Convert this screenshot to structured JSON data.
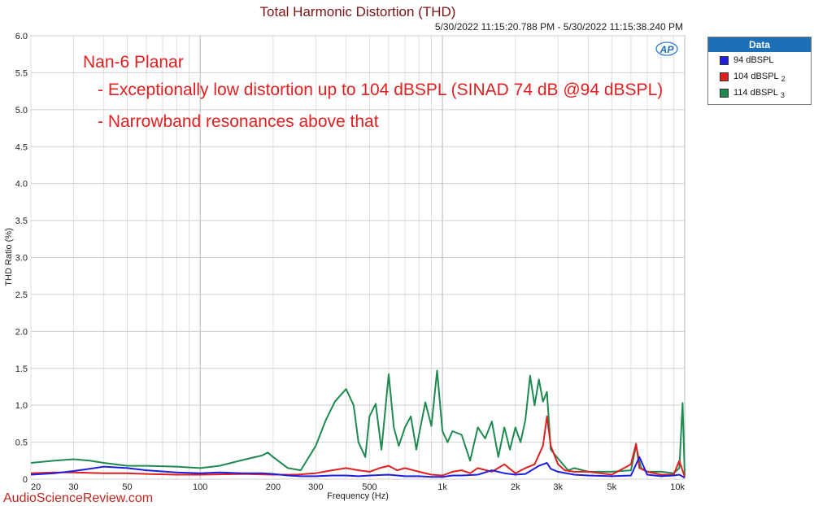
{
  "chart_data": {
    "type": "line",
    "title": "Total Harmonic Distortion (THD)",
    "subtitle": "5/30/2022 11:15:20.788 PM - 5/30/2022 11:15:38.240 PM",
    "xlabel": "Frequency (Hz)",
    "ylabel": "THD Ratio (%)",
    "x_scale": "log",
    "xlim": [
      20,
      10000
    ],
    "ylim": [
      0,
      6.0
    ],
    "grid": true,
    "x_ticks": [
      {
        "v": 20,
        "label": "20"
      },
      {
        "v": 30,
        "label": "30"
      },
      {
        "v": 50,
        "label": "50"
      },
      {
        "v": 100,
        "label": "100"
      },
      {
        "v": 200,
        "label": "200"
      },
      {
        "v": 300,
        "label": "300"
      },
      {
        "v": 500,
        "label": "500"
      },
      {
        "v": 1000,
        "label": "1k"
      },
      {
        "v": 2000,
        "label": "2k"
      },
      {
        "v": 3000,
        "label": "3k"
      },
      {
        "v": 5000,
        "label": "5k"
      },
      {
        "v": 10000,
        "label": "10k"
      }
    ],
    "y_ticks": [
      "0",
      "0.5",
      "1.0",
      "1.5",
      "2.0",
      "2.5",
      "3.0",
      "3.5",
      "4.0",
      "4.5",
      "5.0",
      "5.5",
      "6.0"
    ],
    "annotations": [
      "Nan-6 Planar",
      "- Exceptionally low distortion up to 104 dBSPL (SINAD 74 dB @94 dBSPL)",
      "- Narrowband resonances above that"
    ],
    "legend_title": "Data",
    "legend_position": "top-right",
    "series": [
      {
        "name": "94 dBSPL",
        "sub": "",
        "color": "#1f1fe0",
        "x": [
          20,
          25,
          30,
          35,
          40,
          50,
          60,
          80,
          100,
          120,
          150,
          180,
          200,
          230,
          260,
          300,
          350,
          400,
          450,
          500,
          600,
          700,
          800,
          900,
          1000,
          1100,
          1200,
          1400,
          1600,
          1800,
          2000,
          2200,
          2500,
          2700,
          2800,
          3000,
          3500,
          4000,
          5000,
          6000,
          6500,
          7000,
          8000,
          9000,
          9500,
          10000
        ],
        "y": [
          0.06,
          0.08,
          0.11,
          0.14,
          0.17,
          0.15,
          0.12,
          0.09,
          0.08,
          0.09,
          0.08,
          0.08,
          0.07,
          0.05,
          0.04,
          0.04,
          0.05,
          0.05,
          0.04,
          0.05,
          0.06,
          0.04,
          0.04,
          0.03,
          0.03,
          0.05,
          0.05,
          0.06,
          0.12,
          0.08,
          0.06,
          0.07,
          0.18,
          0.22,
          0.14,
          0.1,
          0.06,
          0.05,
          0.04,
          0.05,
          0.3,
          0.06,
          0.04,
          0.05,
          0.06,
          0.02
        ]
      },
      {
        "name": "104 dBSPL",
        "sub": "2",
        "color": "#e01f1f",
        "x": [
          20,
          25,
          30,
          40,
          50,
          60,
          80,
          100,
          150,
          200,
          250,
          300,
          350,
          400,
          450,
          500,
          550,
          600,
          650,
          700,
          800,
          900,
          1000,
          1100,
          1200,
          1300,
          1400,
          1600,
          1800,
          2000,
          2200,
          2400,
          2600,
          2700,
          2800,
          3000,
          3200,
          3500,
          4000,
          5000,
          6000,
          6300,
          6500,
          7000,
          8000,
          9000,
          9500,
          10000
        ],
        "y": [
          0.08,
          0.09,
          0.09,
          0.08,
          0.08,
          0.07,
          0.06,
          0.06,
          0.07,
          0.06,
          0.06,
          0.08,
          0.12,
          0.15,
          0.12,
          0.1,
          0.15,
          0.18,
          0.12,
          0.15,
          0.1,
          0.06,
          0.05,
          0.1,
          0.12,
          0.08,
          0.15,
          0.1,
          0.2,
          0.08,
          0.15,
          0.2,
          0.45,
          0.85,
          0.45,
          0.2,
          0.12,
          0.1,
          0.1,
          0.06,
          0.2,
          0.48,
          0.15,
          0.1,
          0.06,
          0.06,
          0.25,
          0.03
        ]
      },
      {
        "name": "114  dBSPL",
        "sub": "3",
        "color": "#1e8a50",
        "x": [
          20,
          25,
          30,
          35,
          40,
          50,
          60,
          80,
          100,
          120,
          150,
          180,
          190,
          200,
          230,
          260,
          300,
          330,
          360,
          400,
          430,
          450,
          480,
          500,
          530,
          560,
          600,
          630,
          660,
          700,
          740,
          780,
          800,
          850,
          900,
          950,
          1000,
          1050,
          1100,
          1200,
          1300,
          1400,
          1500,
          1600,
          1700,
          1800,
          1900,
          2000,
          2100,
          2200,
          2300,
          2400,
          2500,
          2600,
          2700,
          2800,
          3000,
          3300,
          3500,
          4000,
          5000,
          6000,
          6300,
          6600,
          7000,
          8000,
          9000,
          9500,
          9800,
          10000
        ],
        "y": [
          0.22,
          0.25,
          0.27,
          0.25,
          0.22,
          0.18,
          0.18,
          0.17,
          0.15,
          0.18,
          0.26,
          0.32,
          0.36,
          0.3,
          0.15,
          0.12,
          0.45,
          0.8,
          1.05,
          1.22,
          1.0,
          0.5,
          0.3,
          0.85,
          1.02,
          0.4,
          1.42,
          0.7,
          0.45,
          0.7,
          0.85,
          0.4,
          0.6,
          1.04,
          0.72,
          1.47,
          0.65,
          0.5,
          0.65,
          0.6,
          0.25,
          0.7,
          0.55,
          0.78,
          0.3,
          0.7,
          0.4,
          0.7,
          0.5,
          0.8,
          1.4,
          1.0,
          1.35,
          1.05,
          1.18,
          0.4,
          0.28,
          0.12,
          0.15,
          0.1,
          0.1,
          0.12,
          0.45,
          0.15,
          0.1,
          0.1,
          0.08,
          0.15,
          1.03,
          0.05
        ]
      }
    ]
  },
  "watermark": "AudioScienceReview.com",
  "logo": "AP"
}
